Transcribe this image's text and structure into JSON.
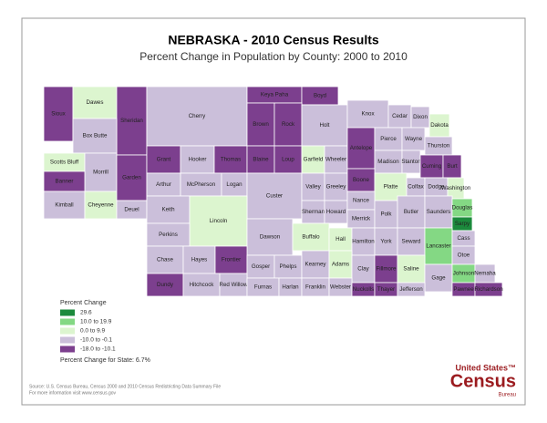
{
  "header": {
    "title": "NEBRASKA - 2010 Census Results",
    "subtitle": "Percent Change in Population by County:  2000 to 2010"
  },
  "legend": {
    "title": "Percent Change",
    "classes": [
      {
        "label": "29.6",
        "color": "#1b8a3c"
      },
      {
        "label": "10.0 to 19.9",
        "color": "#84d884"
      },
      {
        "label": "0.0 to 9.9",
        "color": "#dcf5cf"
      },
      {
        "label": "-10.0 to -0.1",
        "color": "#cbbfda"
      },
      {
        "label": "-18.0 to -10.1",
        "color": "#7c3f8e"
      }
    ],
    "state_note": "Percent Change for State: 6.7%"
  },
  "counties": [
    {
      "name": "Sioux",
      "class": 4
    },
    {
      "name": "Dawes",
      "class": 2
    },
    {
      "name": "Sheridan",
      "class": 4
    },
    {
      "name": "Box Butte",
      "class": 3
    },
    {
      "name": "Cherry",
      "class": 3
    },
    {
      "name": "Keya Paha",
      "class": 4
    },
    {
      "name": "Boyd",
      "class": 4
    },
    {
      "name": "Brown",
      "class": 4
    },
    {
      "name": "Rock",
      "class": 4
    },
    {
      "name": "Holt",
      "class": 3
    },
    {
      "name": "Knox",
      "class": 3
    },
    {
      "name": "Cedar",
      "class": 3
    },
    {
      "name": "Dixon",
      "class": 3
    },
    {
      "name": "Dakota",
      "class": 2
    },
    {
      "name": "Scotts Bluff",
      "class": 2
    },
    {
      "name": "Morrill",
      "class": 3
    },
    {
      "name": "Banner",
      "class": 4
    },
    {
      "name": "Kimball",
      "class": 3
    },
    {
      "name": "Cheyenne",
      "class": 2
    },
    {
      "name": "Garden",
      "class": 4
    },
    {
      "name": "Deuel",
      "class": 3
    },
    {
      "name": "Grant",
      "class": 4
    },
    {
      "name": "Hooker",
      "class": 3
    },
    {
      "name": "Thomas",
      "class": 4
    },
    {
      "name": "Blaine",
      "class": 4
    },
    {
      "name": "Loup",
      "class": 4
    },
    {
      "name": "Garfield",
      "class": 2
    },
    {
      "name": "Wheeler",
      "class": 3
    },
    {
      "name": "Antelope",
      "class": 4
    },
    {
      "name": "Pierce",
      "class": 3
    },
    {
      "name": "Wayne",
      "class": 3
    },
    {
      "name": "Thurston",
      "class": 3
    },
    {
      "name": "Madison",
      "class": 3
    },
    {
      "name": "Stanton",
      "class": 3
    },
    {
      "name": "Cuming",
      "class": 4
    },
    {
      "name": "Burt",
      "class": 4
    },
    {
      "name": "Arthur",
      "class": 3
    },
    {
      "name": "McPherson",
      "class": 3
    },
    {
      "name": "Logan",
      "class": 3
    },
    {
      "name": "Custer",
      "class": 3
    },
    {
      "name": "Valley",
      "class": 3
    },
    {
      "name": "Greeley",
      "class": 3
    },
    {
      "name": "Boone",
      "class": 4
    },
    {
      "name": "Platte",
      "class": 2
    },
    {
      "name": "Colfax",
      "class": 3
    },
    {
      "name": "Dodge",
      "class": 3
    },
    {
      "name": "Washington",
      "class": 2
    },
    {
      "name": "Keith",
      "class": 3
    },
    {
      "name": "Lincoln",
      "class": 2
    },
    {
      "name": "Sherman",
      "class": 3
    },
    {
      "name": "Howard",
      "class": 3
    },
    {
      "name": "Nance",
      "class": 3
    },
    {
      "name": "Merrick",
      "class": 3
    },
    {
      "name": "Polk",
      "class": 3
    },
    {
      "name": "Butler",
      "class": 3
    },
    {
      "name": "Saunders",
      "class": 3
    },
    {
      "name": "Douglas",
      "class": 1
    },
    {
      "name": "Sarpy",
      "class": 0
    },
    {
      "name": "Perkins",
      "class": 3
    },
    {
      "name": "Dawson",
      "class": 3
    },
    {
      "name": "Buffalo",
      "class": 2
    },
    {
      "name": "Hall",
      "class": 2
    },
    {
      "name": "Hamilton",
      "class": 3
    },
    {
      "name": "York",
      "class": 3
    },
    {
      "name": "Seward",
      "class": 3
    },
    {
      "name": "Lancaster",
      "class": 1
    },
    {
      "name": "Cass",
      "class": 3
    },
    {
      "name": "Otoe",
      "class": 3
    },
    {
      "name": "Chase",
      "class": 3
    },
    {
      "name": "Hayes",
      "class": 3
    },
    {
      "name": "Frontier",
      "class": 4
    },
    {
      "name": "Gosper",
      "class": 3
    },
    {
      "name": "Phelps",
      "class": 3
    },
    {
      "name": "Kearney",
      "class": 3
    },
    {
      "name": "Adams",
      "class": 2
    },
    {
      "name": "Clay",
      "class": 3
    },
    {
      "name": "Fillmore",
      "class": 4
    },
    {
      "name": "Saline",
      "class": 2
    },
    {
      "name": "Gage",
      "class": 3
    },
    {
      "name": "Johnson",
      "class": 1
    },
    {
      "name": "Nemaha",
      "class": 3
    },
    {
      "name": "Dundy",
      "class": 4
    },
    {
      "name": "Hitchcock",
      "class": 3
    },
    {
      "name": "Red Willow",
      "class": 3
    },
    {
      "name": "Furnas",
      "class": 3
    },
    {
      "name": "Harlan",
      "class": 3
    },
    {
      "name": "Franklin",
      "class": 3
    },
    {
      "name": "Webster",
      "class": 3
    },
    {
      "name": "Nuckolls",
      "class": 4
    },
    {
      "name": "Thayer",
      "class": 4
    },
    {
      "name": "Jefferson",
      "class": 3
    },
    {
      "name": "Pawnee",
      "class": 4
    },
    {
      "name": "Richardson",
      "class": 4
    }
  ],
  "footer": {
    "source": "Source: U.S. Census Bureau, Census 2000 and 2010 Census Redistricting Data Summary File",
    "info": "For more information visit www.census.gov"
  },
  "logo": {
    "top": "United States™",
    "main": "Census",
    "bottom": "Bureau"
  }
}
